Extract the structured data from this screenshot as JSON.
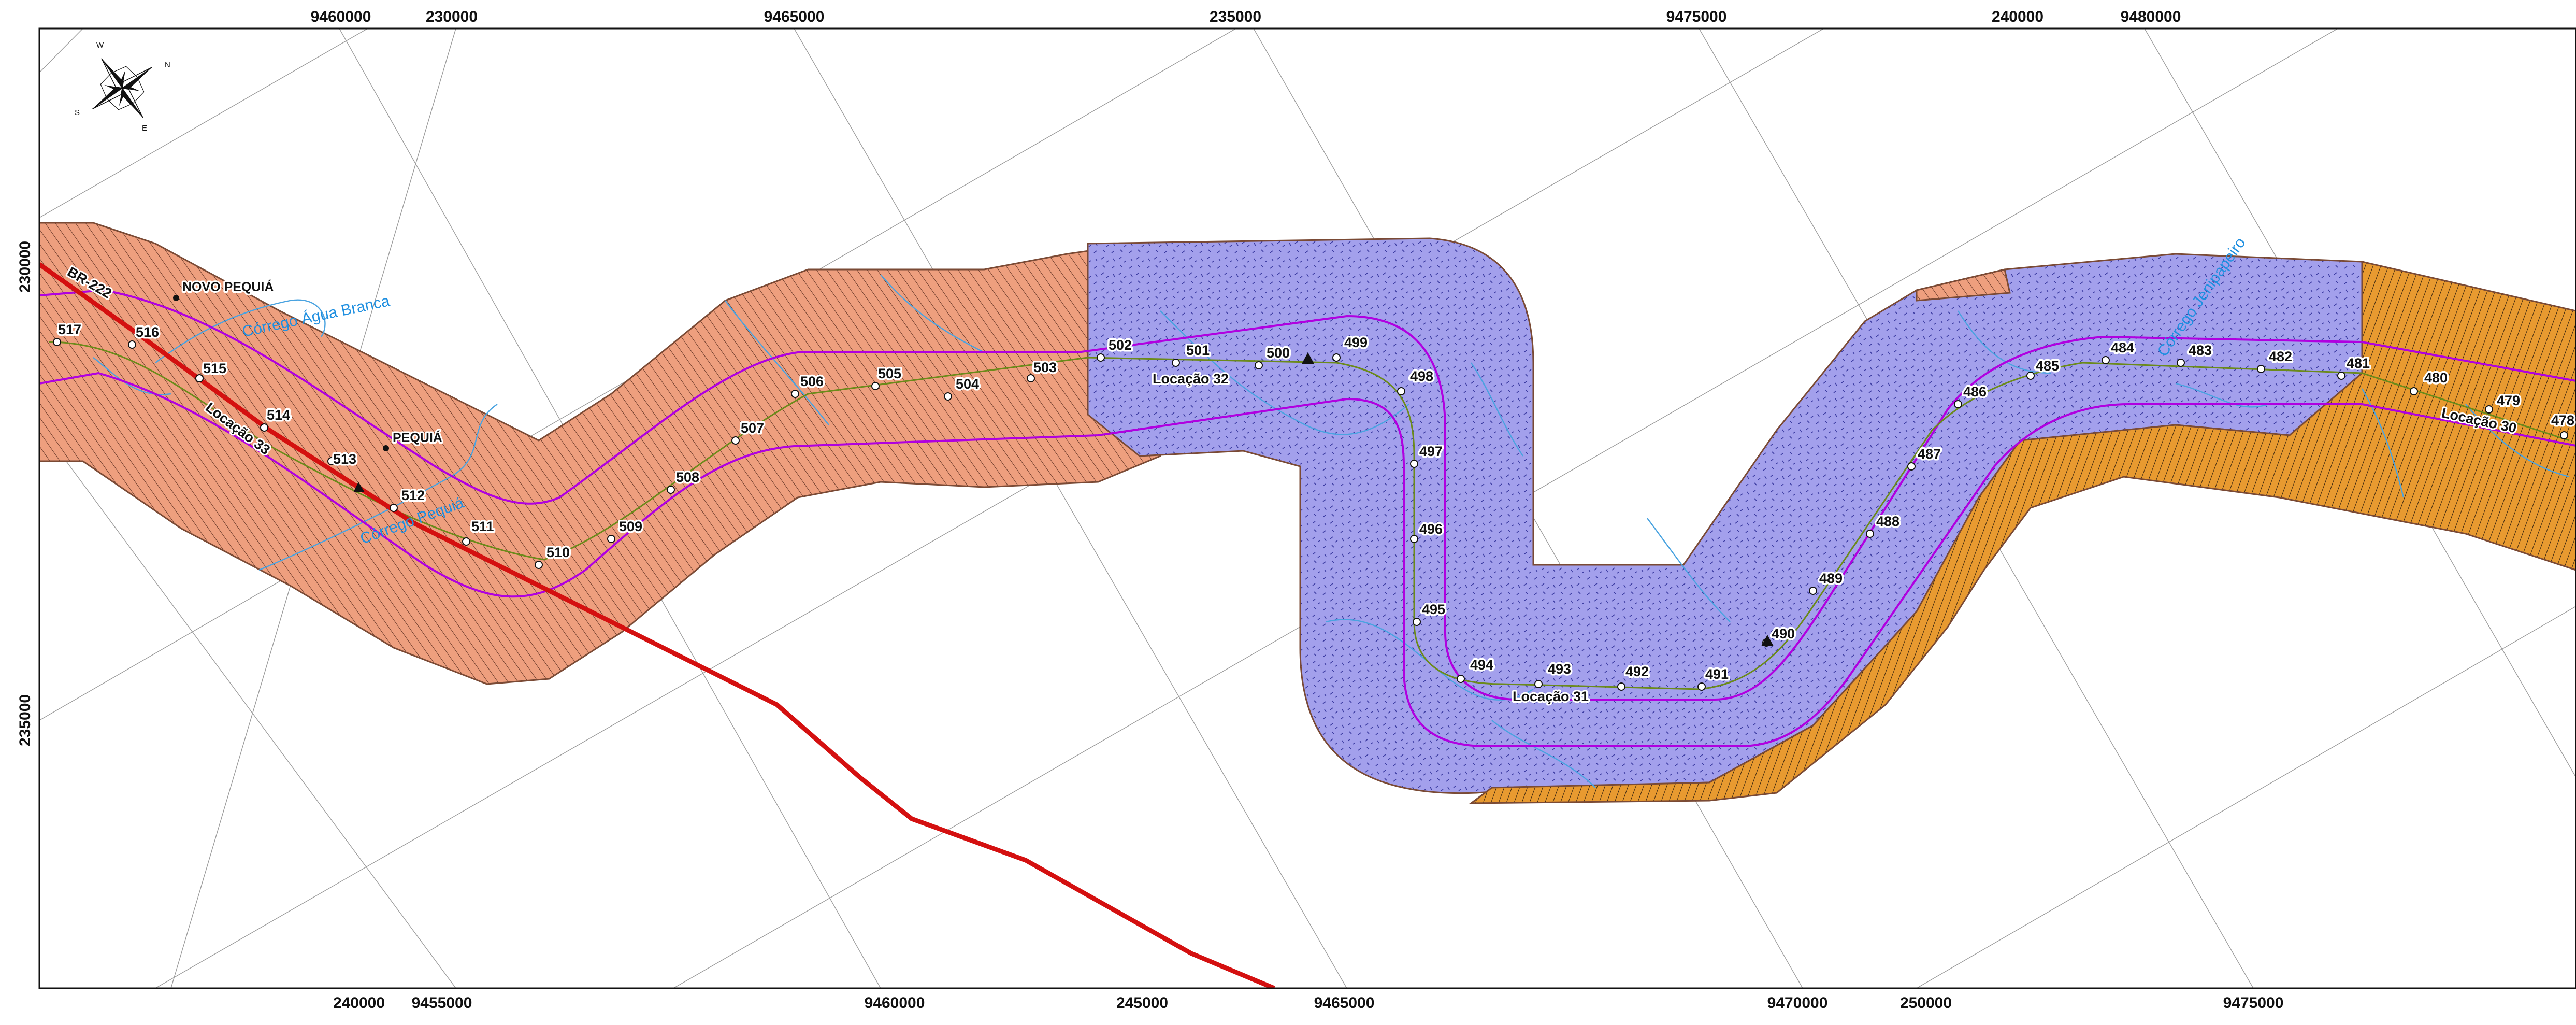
{
  "colors": {
    "zone_salmon": "#ee9f7e",
    "zone_blue": "#a3a0ec",
    "zone_orange": "#e89a30",
    "zone_border": "#7a4a35",
    "buffer_magenta": "#b000e0",
    "road_red": "#d41010",
    "river_blue": "#4aa3e0",
    "centerline_olive": "#6b8a1a",
    "grid_gray": "#9a9a9a"
  },
  "grid": {
    "top_labels": [
      "9460000",
      "230000",
      "9465000",
      "235000",
      "9475000",
      "240000",
      "9480000"
    ],
    "bottom_labels": [
      "240000",
      "9455000",
      "9460000",
      "245000",
      "9465000",
      "9470000",
      "250000",
      "9475000"
    ],
    "left_labels": [
      "230000",
      "235000"
    ]
  },
  "compass": {
    "icon": "compass-rose-icon",
    "letters": [
      "N",
      "E",
      "S",
      "W"
    ]
  },
  "km_markers": [
    "517",
    "516",
    "515",
    "514",
    "513",
    "512",
    "511",
    "510",
    "509",
    "508",
    "507",
    "506",
    "505",
    "504",
    "503",
    "502",
    "501",
    "500",
    "499",
    "498",
    "497",
    "496",
    "495",
    "494",
    "493",
    "492",
    "491",
    "490",
    "489",
    "488",
    "487",
    "486",
    "485",
    "484",
    "483",
    "482",
    "481",
    "480",
    "479",
    "478"
  ],
  "locations": [
    "Locação 33",
    "Locação 32",
    "Locação 31",
    "Locação 30"
  ],
  "places": [
    "NOVO PEQUIÁ",
    "PEQUIÁ"
  ],
  "road": "BR-222",
  "waterways": [
    "Córrego Água Branca",
    "Córrego Pequiá",
    "Córrego Jenipapeiro"
  ]
}
